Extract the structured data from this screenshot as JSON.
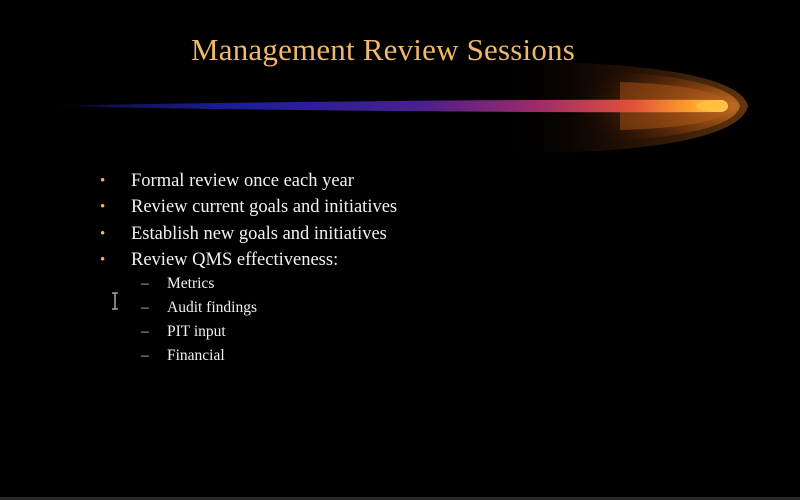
{
  "slide": {
    "title": "Management Review Sessions",
    "bullets": [
      "Formal review once each year",
      "Review current goals and initiatives",
      "Establish new goals and initiatives",
      "Review QMS effectiveness:"
    ],
    "bullet_symbol": "•",
    "sub_bullets": [
      "Metrics",
      "Audit findings",
      "PIT input",
      "Financial"
    ],
    "sub_bullet_symbol": "–"
  },
  "colors": {
    "background": "#000000",
    "title": "#F0B86A",
    "text": "#F2F2F2",
    "comet_head": "#FFB020",
    "comet_tail": "#1A1A8C"
  },
  "icons": {
    "cursor": "text-cursor-icon",
    "decoration": "comet-swoosh"
  }
}
